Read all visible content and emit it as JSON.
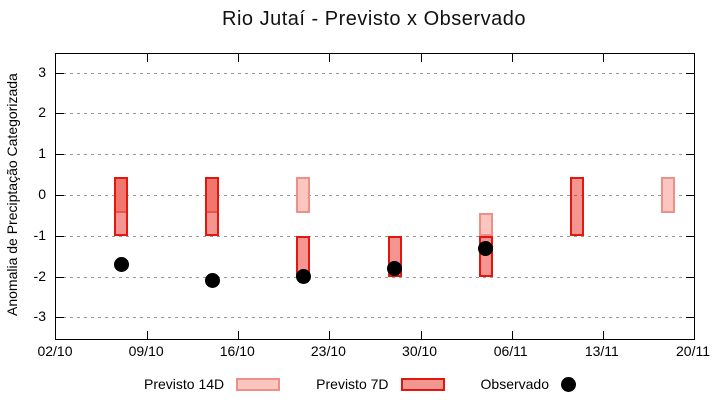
{
  "chart_data": {
    "type": "bar",
    "title": "Rio Jutaí - Previsto x Observado",
    "ylabel": "Anomalia de Preciptação Categorizada",
    "xlabel": "",
    "ylim": [
      -3.5,
      3.5
    ],
    "yticks": [
      3,
      2,
      1,
      0,
      -1,
      -2,
      -3
    ],
    "x_tick_labels": [
      "02/10",
      "09/10",
      "16/10",
      "23/10",
      "30/10",
      "06/11",
      "13/11",
      "20/11"
    ],
    "x_tick_interval_days": 7,
    "x_total_days": 49,
    "grid": "horizontal dashed",
    "legend_position": "bottom center",
    "colors": {
      "prev14_fill": "#f9c6c0",
      "prev14_border": "#ef8f87",
      "prev7_fill": "rgba(230,20,10,0.45)",
      "prev7_fill_flat": "#f29691",
      "prev7_border": "#e3170d",
      "observed": "#000000",
      "grid": "#999999",
      "frame": "#000000"
    },
    "series": [
      {
        "name": "Previsto 14D",
        "type": "range-bar"
      },
      {
        "name": "Previsto 7D",
        "type": "range-bar"
      },
      {
        "name": "Observado",
        "type": "point"
      }
    ],
    "clusters": [
      {
        "date": "07/10",
        "day": 5,
        "prev14": [
          0.45,
          -0.45
        ],
        "prev7": [
          0.45,
          -1.0
        ],
        "obs": -1.7
      },
      {
        "date": "14/10",
        "day": 12,
        "prev14": [
          0.45,
          -0.45
        ],
        "prev7": [
          0.45,
          -1.0
        ],
        "obs": -2.1
      },
      {
        "date": "21/10",
        "day": 19,
        "prev14": [
          0.45,
          -0.45
        ],
        "prev7": [
          -1.0,
          -2.0
        ],
        "obs": -2.0
      },
      {
        "date": "28/10",
        "day": 26,
        "prev14": null,
        "prev7": [
          -1.0,
          -2.0
        ],
        "obs": -1.8
      },
      {
        "date": "04/11",
        "day": 33,
        "prev14": [
          -0.45,
          -1.0
        ],
        "prev7": [
          -1.0,
          -2.0
        ],
        "obs": -1.3
      },
      {
        "date": "11/11",
        "day": 40,
        "prev14": null,
        "prev7": [
          0.45,
          -1.0
        ],
        "obs": null
      },
      {
        "date": "18/11",
        "day": 47,
        "prev14": [
          0.45,
          -0.45
        ],
        "prev7": null,
        "obs": null
      }
    ]
  }
}
